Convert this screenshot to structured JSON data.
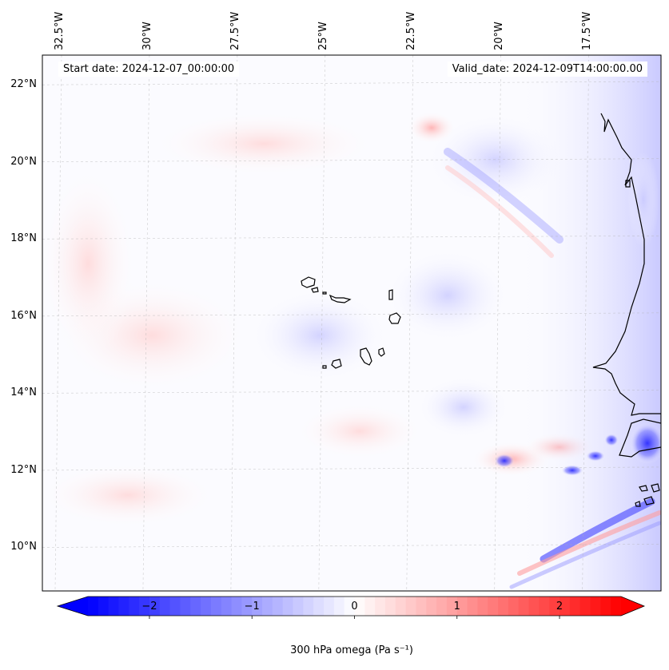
{
  "header": {
    "start_date": "Start date: 2024-12-07_00:00:00",
    "valid_date": "Valid_date: 2024-12-09T14:00:00.00"
  },
  "map": {
    "lon_ticks": [
      {
        "value": -32.5,
        "label": "32.5°W"
      },
      {
        "value": -30.0,
        "label": "30°W"
      },
      {
        "value": -27.5,
        "label": "27.5°W"
      },
      {
        "value": -25.0,
        "label": "25°W"
      },
      {
        "value": -22.5,
        "label": "22.5°W"
      },
      {
        "value": -20.0,
        "label": "20°W"
      },
      {
        "value": -17.5,
        "label": "17.5°W"
      }
    ],
    "lat_ticks": [
      {
        "value": 22,
        "label": "22°N"
      },
      {
        "value": 20,
        "label": "20°N"
      },
      {
        "value": 18,
        "label": "18°N"
      },
      {
        "value": 16,
        "label": "16°N"
      },
      {
        "value": 14,
        "label": "14°N"
      },
      {
        "value": 12,
        "label": "12°N"
      },
      {
        "value": 10,
        "label": "10°N"
      }
    ],
    "colors": {
      "neg_strong": "#0000ff",
      "neg_weak": "#e6e6ff",
      "pos_strong": "#ff0000",
      "pos_weak": "#ffe6e6",
      "coastline": "#000000",
      "grid": "#b0b0b0"
    }
  },
  "colorbar": {
    "label": "300 hPa omega (Pa s⁻¹)",
    "vmin": -2.6,
    "vmax": 2.6,
    "ticks": [
      {
        "value": -2,
        "label": "−2"
      },
      {
        "value": -1,
        "label": "−1"
      },
      {
        "value": 0,
        "label": "0"
      },
      {
        "value": 1,
        "label": "1"
      },
      {
        "value": 2,
        "label": "2"
      }
    ],
    "colormap": "bwr",
    "extend": "both"
  }
}
